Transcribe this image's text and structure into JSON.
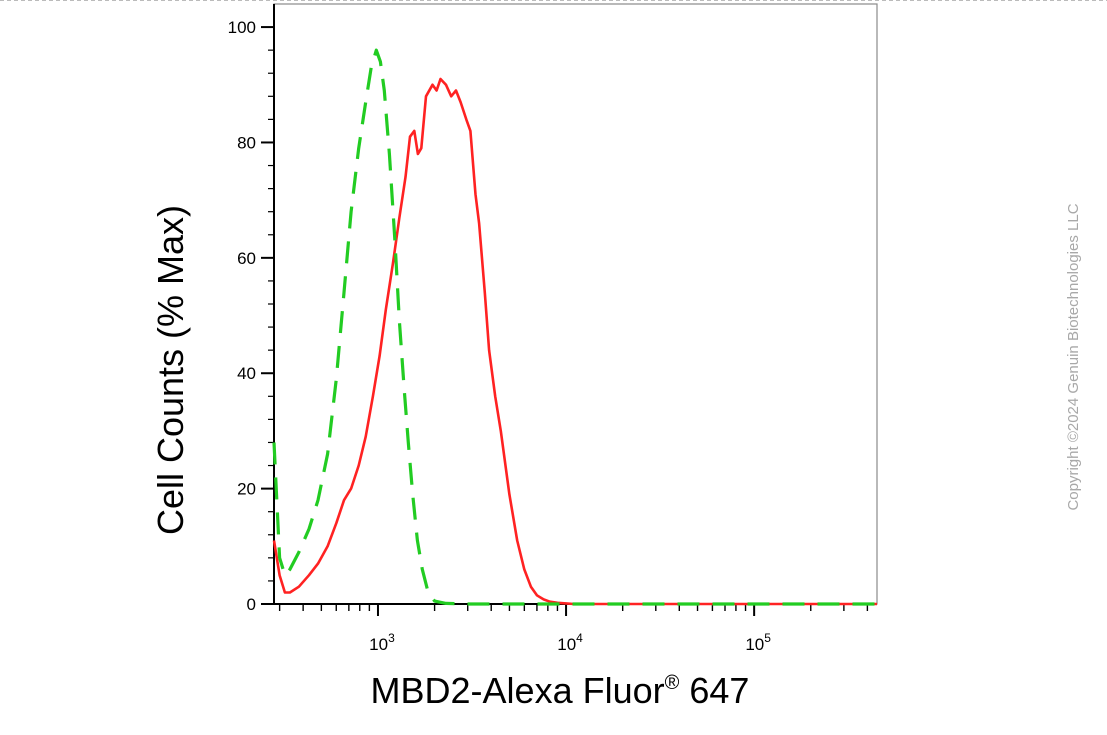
{
  "chart_data": {
    "type": "line",
    "title": "",
    "xlabel": "MBD2-Alexa Fluor",
    "xlabel_superscript": "®",
    "xlabel_suffix": " 647",
    "ylabel": "Cell Counts (% Max)",
    "x_scale": "log",
    "xlim": [
      280,
      450000
    ],
    "ylim": [
      0,
      104
    ],
    "x_ticks": [
      {
        "value": 1000,
        "base": "10",
        "exp": "3"
      },
      {
        "value": 10000,
        "base": "10",
        "exp": "4"
      },
      {
        "value": 100000,
        "base": "10",
        "exp": "5"
      }
    ],
    "y_ticks": [
      0,
      20,
      40,
      60,
      80,
      100
    ],
    "series": [
      {
        "color": "#ff2222",
        "dash": "solid",
        "x": [
          280,
          300,
          320,
          340,
          380,
          430,
          480,
          540,
          600,
          660,
          720,
          790,
          860,
          940,
          1020,
          1100,
          1200,
          1300,
          1400,
          1480,
          1560,
          1630,
          1700,
          1800,
          1950,
          2050,
          2150,
          2300,
          2450,
          2600,
          2750,
          2950,
          3100,
          3300,
          3450,
          3700,
          3900,
          4200,
          4500,
          5000,
          5500,
          6000,
          6500,
          7000,
          7600,
          8200,
          9000,
          10000,
          11000,
          13000,
          20000,
          50000,
          100000,
          200000,
          450000
        ],
        "y": [
          11,
          5,
          2,
          2,
          3,
          5,
          7,
          10,
          14,
          18,
          20,
          24,
          29,
          36,
          43,
          51,
          59,
          67,
          74,
          81,
          82,
          78,
          79,
          88,
          90,
          89,
          91,
          90,
          88,
          89,
          87,
          84,
          82,
          71,
          66,
          54,
          44,
          36,
          30,
          19,
          11,
          6,
          3,
          1.5,
          0.8,
          0.4,
          0.2,
          0.1,
          0,
          0,
          0,
          0,
          0,
          0,
          0
        ]
      },
      {
        "color": "#22cc22",
        "dash": "dashed",
        "x": [
          280,
          300,
          320,
          340,
          380,
          430,
          480,
          540,
          600,
          660,
          720,
          790,
          860,
          920,
          980,
          1030,
          1080,
          1150,
          1230,
          1300,
          1380,
          1450,
          1530,
          1620,
          1720,
          1850,
          2000,
          2300,
          3000,
          5000,
          10000,
          30000,
          100000,
          450000
        ],
        "y": [
          28,
          8,
          5,
          6,
          9,
          13,
          18,
          26,
          39,
          54,
          68,
          79,
          87,
          93,
          96,
          94,
          89,
          78,
          63,
          49,
          37,
          28,
          19,
          11,
          6,
          2,
          0.5,
          0.1,
          0,
          0,
          0,
          0,
          0,
          0
        ]
      }
    ]
  },
  "watermark": {
    "text": "Copyright ©2024 Genuin Biotechnologies LLC",
    "color": "#a8a8a8"
  }
}
